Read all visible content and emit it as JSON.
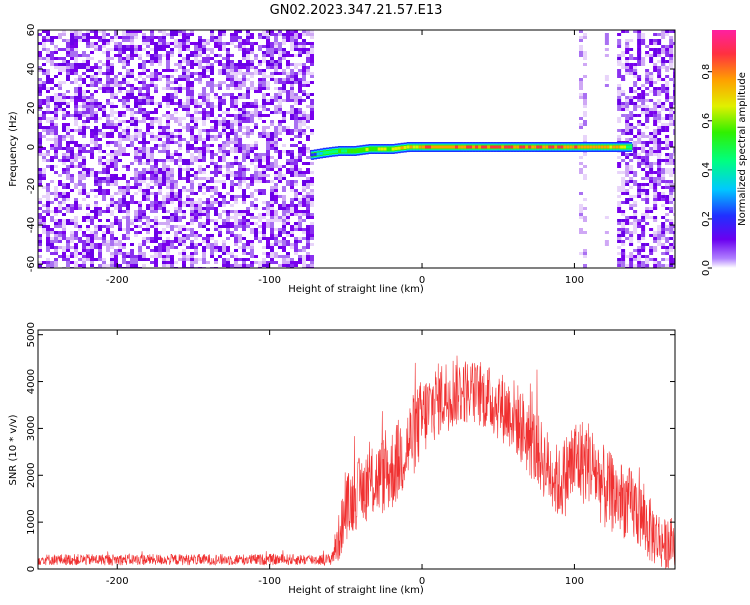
{
  "figure": {
    "title": "GN02.2023.347.21.57.E13"
  },
  "colors": {
    "background": "#ffffff",
    "snr_line": "#f03030",
    "colormap": [
      "#ffffff",
      "#d7b4f5",
      "#8a3cf0",
      "#7a00ee",
      "#2a3cff",
      "#00c8ff",
      "#00ff90",
      "#30f000",
      "#e0f000",
      "#ffa000",
      "#ff3040",
      "#ff20a0"
    ]
  },
  "chart_data": [
    {
      "type": "heatmap",
      "name": "spectrogram",
      "xlabel": "Height of straight line (km)",
      "ylabel": "Frequency (Hz)",
      "xlim": [
        -252,
        166
      ],
      "ylim": [
        -62,
        60
      ],
      "x_ticks": [
        -200,
        -100,
        0,
        100
      ],
      "x_tick_labels": [
        "-200",
        "-100",
        "0",
        "100"
      ],
      "y_ticks": [
        -60,
        -40,
        -20,
        0,
        20,
        40,
        60
      ],
      "y_tick_labels": [
        "-60",
        "-40",
        "-20",
        "0",
        "20",
        "40",
        "60"
      ],
      "colorbar": {
        "label": "Normalized spectral amplitude",
        "range": [
          0,
          0.97
        ],
        "ticks": [
          0.0,
          0.2,
          0.4,
          0.6,
          0.8
        ],
        "tick_labels": [
          "0.0",
          "0.2",
          "0.4",
          "0.6",
          "0.8"
        ]
      },
      "noise_regions": [
        {
          "x_start": -252,
          "x_end": -73,
          "density": "high"
        },
        {
          "x_start": 103,
          "x_end": 108,
          "density": "medium"
        },
        {
          "x_start": 120,
          "x_end": 122,
          "density": "low"
        },
        {
          "x_start": 128,
          "x_end": 166,
          "density": "high"
        }
      ],
      "signal_band": [
        {
          "x": -73,
          "freq": -4,
          "amplitude": 0.3
        },
        {
          "x": -65,
          "freq": -3,
          "amplitude": 0.5
        },
        {
          "x": -55,
          "freq": -2,
          "amplitude": 0.6
        },
        {
          "x": -45,
          "freq": -2,
          "amplitude": 0.65
        },
        {
          "x": -35,
          "freq": -1,
          "amplitude": 0.7
        },
        {
          "x": -20,
          "freq": -1,
          "amplitude": 0.75
        },
        {
          "x": -10,
          "freq": 0,
          "amplitude": 0.85
        },
        {
          "x": 0,
          "freq": 0,
          "amplitude": 0.9
        },
        {
          "x": 25,
          "freq": 0,
          "amplitude": 0.95
        },
        {
          "x": 50,
          "freq": 0,
          "amplitude": 0.97
        },
        {
          "x": 75,
          "freq": 0,
          "amplitude": 0.95
        },
        {
          "x": 100,
          "freq": 0,
          "amplitude": 0.92
        },
        {
          "x": 115,
          "freq": 0,
          "amplitude": 0.9
        },
        {
          "x": 130,
          "freq": 0,
          "amplitude": 0.85
        },
        {
          "x": 136,
          "freq": 0,
          "amplitude": 0.5
        }
      ]
    },
    {
      "type": "line",
      "name": "snr",
      "xlabel": "Height of straight line (km)",
      "ylabel": "SNR (10 * v/v)",
      "xlim": [
        -252,
        166
      ],
      "ylim": [
        0,
        5100
      ],
      "x_ticks": [
        -200,
        -100,
        0,
        100
      ],
      "x_tick_labels": [
        "-200",
        "-100",
        "0",
        "100"
      ],
      "y_ticks": [
        0,
        1000,
        2000,
        3000,
        4000,
        5000
      ],
      "y_tick_labels": [
        "0",
        "1000",
        "2000",
        "3000",
        "4000",
        "5000"
      ],
      "envelope": {
        "x": [
          -252,
          -200,
          -150,
          -100,
          -60,
          -55,
          -50,
          -40,
          -30,
          -20,
          -10,
          0,
          10,
          20,
          30,
          40,
          50,
          60,
          70,
          80,
          90,
          100,
          110,
          120,
          130,
          140,
          150,
          160,
          166
        ],
        "mean": [
          200,
          200,
          200,
          200,
          200,
          600,
          1300,
          1700,
          1900,
          2100,
          2600,
          3200,
          3600,
          3800,
          3800,
          3700,
          3500,
          3300,
          2800,
          2300,
          1800,
          2300,
          2300,
          1700,
          1500,
          1300,
          800,
          500,
          600
        ],
        "spread": [
          120,
          120,
          120,
          120,
          120,
          500,
          700,
          750,
          800,
          900,
          900,
          900,
          800,
          800,
          700,
          700,
          750,
          800,
          850,
          800,
          800,
          1000,
          900,
          900,
          800,
          800,
          700,
          550,
          550
        ]
      }
    }
  ]
}
